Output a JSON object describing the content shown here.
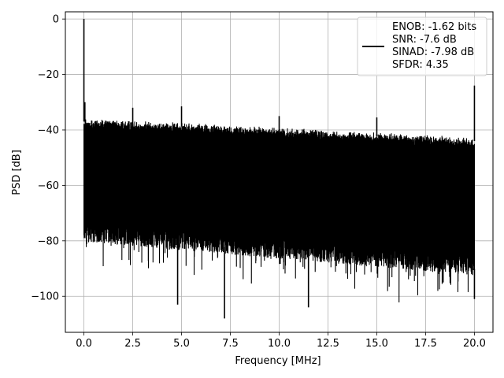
{
  "chart_data": {
    "type": "line",
    "title": "",
    "xlabel": "Frequency [MHz]",
    "ylabel": "PSD [dB]",
    "xlim": [
      -0.95,
      20.95
    ],
    "ylim": [
      -113,
      2.6
    ],
    "xticks": [
      0.0,
      2.5,
      5.0,
      7.5,
      10.0,
      12.5,
      15.0,
      17.5,
      20.0
    ],
    "xtick_labels": [
      "0.0",
      "2.5",
      "5.0",
      "7.5",
      "10.0",
      "12.5",
      "15.0",
      "17.5",
      "20.0"
    ],
    "yticks": [
      0,
      -20,
      -40,
      -60,
      -80,
      -100
    ],
    "ytick_labels": [
      "0",
      "−20",
      "−40",
      "−60",
      "−80",
      "−100"
    ],
    "grid": true,
    "legend_position": "top-right",
    "legend_entries": [
      "ENOB: -1.62 bits",
      "SNR: -7.6 dB",
      "SINAD: -7.98 dB",
      "SFDR: 4.35"
    ],
    "series": [
      {
        "color": "#000000",
        "x_range": [
          0,
          20
        ],
        "noise_band": {
          "upper_start": -37,
          "upper_end": -44,
          "lower_start": -78,
          "lower_end": -90,
          "dip_min": -104
        },
        "peaks": [
          {
            "x": 0.0,
            "y": 0
          },
          {
            "x": 0.05,
            "y": -30
          },
          {
            "x": 2.5,
            "y": -32
          },
          {
            "x": 5.0,
            "y": -31.5
          },
          {
            "x": 10.0,
            "y": -35
          },
          {
            "x": 15.0,
            "y": -35.5
          },
          {
            "x": 20.0,
            "y": -24
          }
        ],
        "deep_dips": [
          {
            "x": 4.8,
            "y": -103
          },
          {
            "x": 7.2,
            "y": -108
          },
          {
            "x": 11.5,
            "y": -104
          },
          {
            "x": 20.0,
            "y": -101
          }
        ]
      }
    ]
  }
}
